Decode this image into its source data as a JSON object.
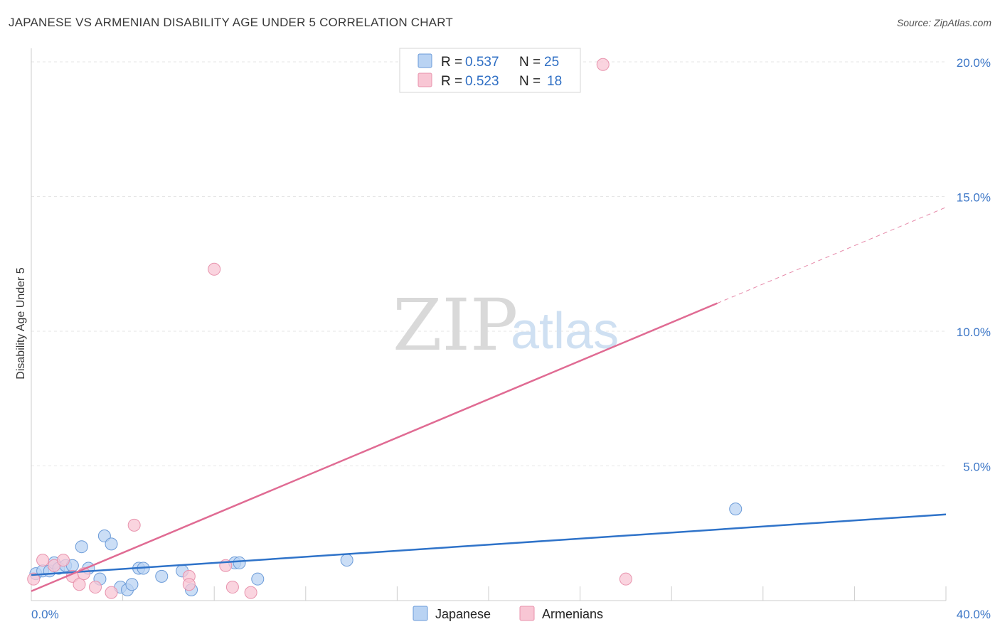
{
  "header": {
    "title": "JAPANESE VS ARMENIAN DISABILITY AGE UNDER 5 CORRELATION CHART",
    "source": "Source: ZipAtlas.com"
  },
  "watermark": {
    "zip": "ZIP",
    "atlas": "atlas"
  },
  "colors": {
    "japanese_fill": "#b9d3f3",
    "japanese_stroke": "#6b9bd8",
    "japanese_line": "#2f73c9",
    "armenian_fill": "#f8c6d4",
    "armenian_stroke": "#e893ad",
    "armenian_line": "#e06b93"
  },
  "legend": {
    "japanese": {
      "r_label": "R = ",
      "r_value": "0.537",
      "n_label": "N = ",
      "n_value": "25"
    },
    "armenian": {
      "r_label": "R = ",
      "r_value": "0.523",
      "n_label": "N = ",
      "n_value": "18"
    }
  },
  "chart_data": {
    "type": "scatter",
    "title": "JAPANESE VS ARMENIAN DISABILITY AGE UNDER 5 CORRELATION CHART",
    "xlabel": "",
    "ylabel": "Disability Age Under 5",
    "xlim": [
      0,
      40
    ],
    "ylim": [
      0,
      20.5
    ],
    "x_ticks": [
      {
        "value": 0,
        "label": "0.0%"
      },
      {
        "value": 40,
        "label": "40.0%"
      }
    ],
    "y_ticks": [
      {
        "value": 5,
        "label": "5.0%"
      },
      {
        "value": 10,
        "label": "10.0%"
      },
      {
        "value": 15,
        "label": "15.0%"
      },
      {
        "value": 20,
        "label": "20.0%"
      }
    ],
    "grid": true,
    "legend_position": "top-center",
    "series": [
      {
        "name": "Japanese",
        "r": 0.537,
        "n": 25,
        "points": [
          [
            0.2,
            1.0
          ],
          [
            0.5,
            1.1
          ],
          [
            0.8,
            1.1
          ],
          [
            1.0,
            1.4
          ],
          [
            1.2,
            1.2
          ],
          [
            1.5,
            1.3
          ],
          [
            1.8,
            1.3
          ],
          [
            2.2,
            2.0
          ],
          [
            2.5,
            1.2
          ],
          [
            3.0,
            0.8
          ],
          [
            3.2,
            2.4
          ],
          [
            3.5,
            2.1
          ],
          [
            3.9,
            0.5
          ],
          [
            4.2,
            0.4
          ],
          [
            4.4,
            0.6
          ],
          [
            4.7,
            1.2
          ],
          [
            4.9,
            1.2
          ],
          [
            5.7,
            0.9
          ],
          [
            6.6,
            1.1
          ],
          [
            7.0,
            0.4
          ],
          [
            8.9,
            1.4
          ],
          [
            9.1,
            1.4
          ],
          [
            9.9,
            0.8
          ],
          [
            13.8,
            1.5
          ],
          [
            30.8,
            3.4
          ]
        ],
        "trend": {
          "x": [
            0,
            40
          ],
          "y": [
            0.95,
            3.2
          ],
          "dashed_from": null
        }
      },
      {
        "name": "Armenians",
        "r": 0.523,
        "n": 18,
        "points": [
          [
            0.1,
            0.8
          ],
          [
            0.5,
            1.5
          ],
          [
            1.0,
            1.3
          ],
          [
            1.4,
            1.5
          ],
          [
            1.8,
            0.9
          ],
          [
            2.1,
            0.6
          ],
          [
            2.3,
            1.0
          ],
          [
            2.8,
            0.5
          ],
          [
            3.5,
            0.3
          ],
          [
            4.5,
            2.8
          ],
          [
            6.9,
            0.9
          ],
          [
            6.9,
            0.6
          ],
          [
            8.5,
            1.3
          ],
          [
            8.8,
            0.5
          ],
          [
            9.6,
            0.3
          ],
          [
            8.0,
            12.3
          ],
          [
            25.0,
            19.9
          ],
          [
            26.0,
            0.8
          ]
        ],
        "trend": {
          "x": [
            0,
            40
          ],
          "y": [
            0.35,
            14.6
          ],
          "dashed_from": 30.0
        }
      }
    ]
  },
  "bottom_legend": {
    "japanese": "Japanese",
    "armenian": "Armenians"
  }
}
